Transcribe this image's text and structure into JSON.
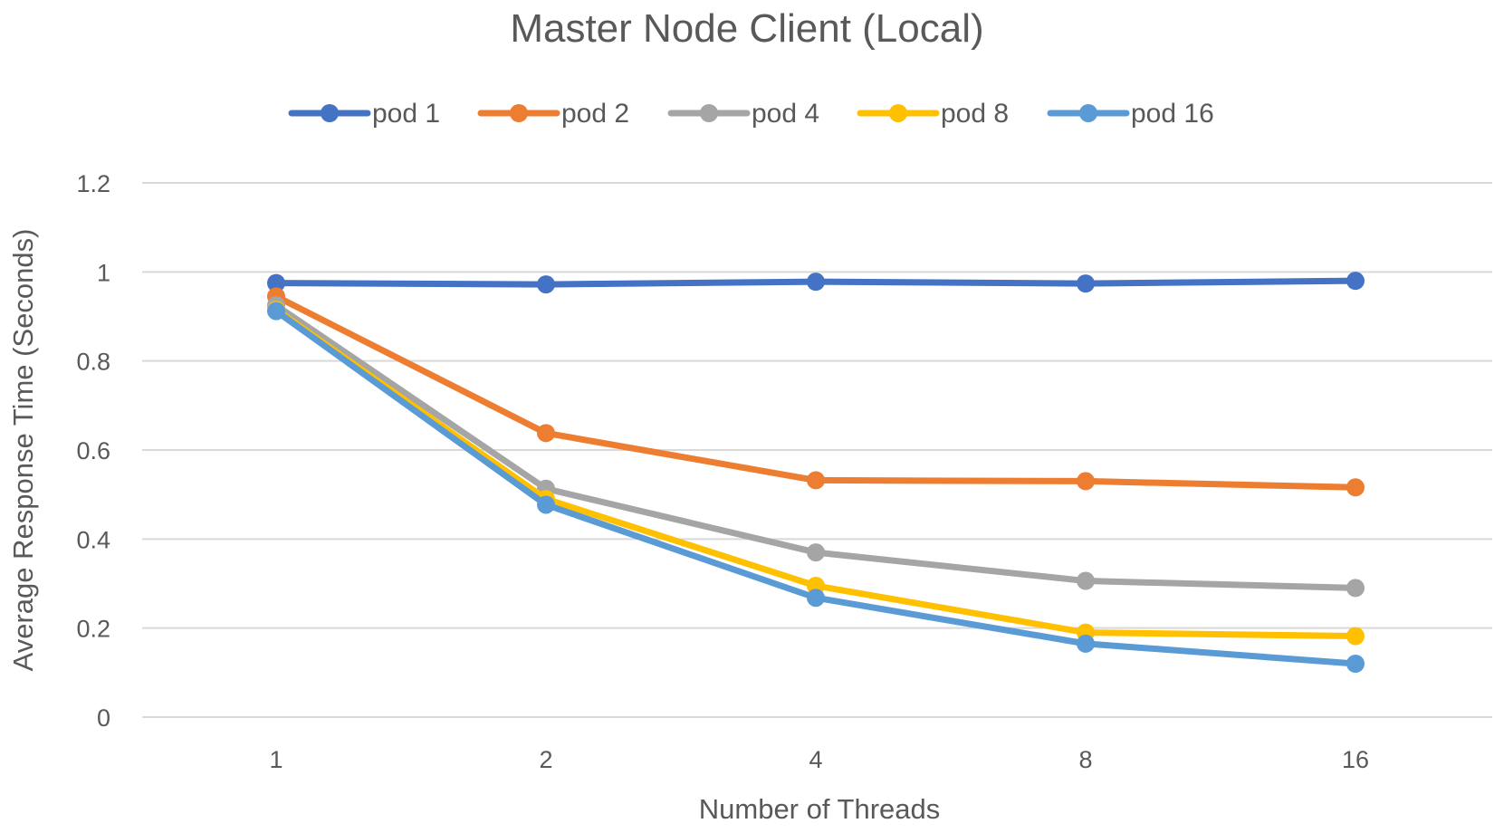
{
  "chart_data": {
    "type": "line",
    "title": "Master Node Client (Local)",
    "xlabel": "Number of Threads",
    "ylabel": "Average Response Time (Seconds)",
    "categories": [
      "1",
      "2",
      "4",
      "8",
      "16"
    ],
    "ylim": [
      0,
      1.2
    ],
    "yticks": [
      "0",
      "0.2",
      "0.4",
      "0.6",
      "0.8",
      "1",
      "1.2"
    ],
    "grid": true,
    "legend_position": "top",
    "series": [
      {
        "name": "pod 1",
        "color": "#4472C4",
        "values": [
          0.975,
          0.972,
          0.978,
          0.974,
          0.98
        ]
      },
      {
        "name": "pod 2",
        "color": "#ED7D31",
        "values": [
          0.945,
          0.638,
          0.532,
          0.53,
          0.516
        ]
      },
      {
        "name": "pod 4",
        "color": "#A5A5A5",
        "values": [
          0.925,
          0.513,
          0.37,
          0.306,
          0.29
        ]
      },
      {
        "name": "pod 8",
        "color": "#FFC000",
        "values": [
          0.915,
          0.49,
          0.295,
          0.19,
          0.182
        ]
      },
      {
        "name": "pod 16",
        "color": "#5B9BD5",
        "values": [
          0.912,
          0.477,
          0.268,
          0.165,
          0.12
        ]
      }
    ]
  }
}
